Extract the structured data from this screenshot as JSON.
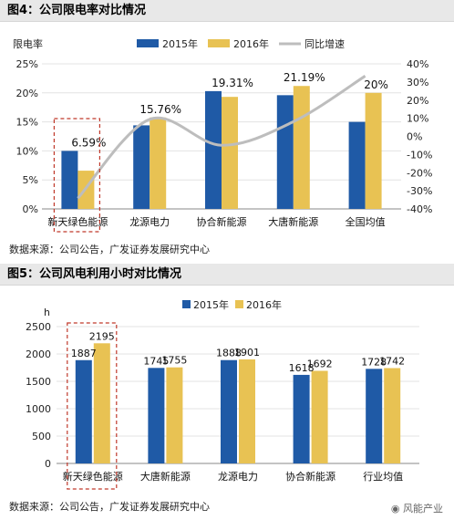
{
  "figure1": {
    "title": "图4：公司限电率对比情况",
    "source": "数据来源：公司公告，广发证券发展研究中心"
  },
  "figure2": {
    "title": "图5：公司风电利用小时对比情况",
    "source": "数据来源：公司公告，广发证券发展研究中心"
  },
  "watermark": "风能产业",
  "colors": {
    "s2015": "#1f5aa6",
    "s2016": "#e8c253",
    "line": "#bdbdbd",
    "highlight": "#c0392b"
  },
  "chart_data": [
    {
      "type": "bar",
      "ylabel": "限电率",
      "categories": [
        "新天绿色能源",
        "龙源电力",
        "协合新能源",
        "大唐新能源",
        "全国均值"
      ],
      "yticks": [
        "0%",
        "5%",
        "10%",
        "15%",
        "20%",
        "25%"
      ],
      "ylim": [
        0,
        25
      ],
      "y2ticks": [
        "-40%",
        "-30%",
        "-20%",
        "-10%",
        "0%",
        "10%",
        "20%",
        "30%",
        "40%"
      ],
      "y2lim": [
        -40,
        40
      ],
      "series": [
        {
          "name": "2015年",
          "values": [
            10.0,
            14.4,
            20.3,
            19.6,
            15.0
          ]
        },
        {
          "name": "2016年",
          "values": [
            6.59,
            15.76,
            19.31,
            21.19,
            20.0
          ]
        },
        {
          "name": "同比增速",
          "axis": "right",
          "values": [
            -34.1,
            9.4,
            -4.9,
            8.1,
            33.3
          ]
        }
      ],
      "data_labels": [
        "6.59%",
        "15.76%",
        "19.31%",
        "21.19%",
        "20%"
      ],
      "highlight_category": 0,
      "legend": "top"
    },
    {
      "type": "bar",
      "ylabel": "h",
      "categories": [
        "新天绿色能源",
        "大唐新能源",
        "龙源电力",
        "协合新能源",
        "行业均值"
      ],
      "yticks": [
        "0",
        "500",
        "1000",
        "1500",
        "2000",
        "2500"
      ],
      "ylim": [
        0,
        2500
      ],
      "series": [
        {
          "name": "2015年",
          "values": [
            1887,
            1745,
            1888,
            1618,
            1728
          ]
        },
        {
          "name": "2016年",
          "values": [
            2195,
            1755,
            1901,
            1692,
            1742
          ]
        }
      ],
      "data_labels": [
        [
          "1887",
          "2195"
        ],
        [
          "1745",
          "1755"
        ],
        [
          "1888",
          "1901"
        ],
        [
          "1618",
          "1692"
        ],
        [
          "1728",
          "1742"
        ]
      ],
      "highlight_category": 0,
      "legend": "top"
    }
  ]
}
